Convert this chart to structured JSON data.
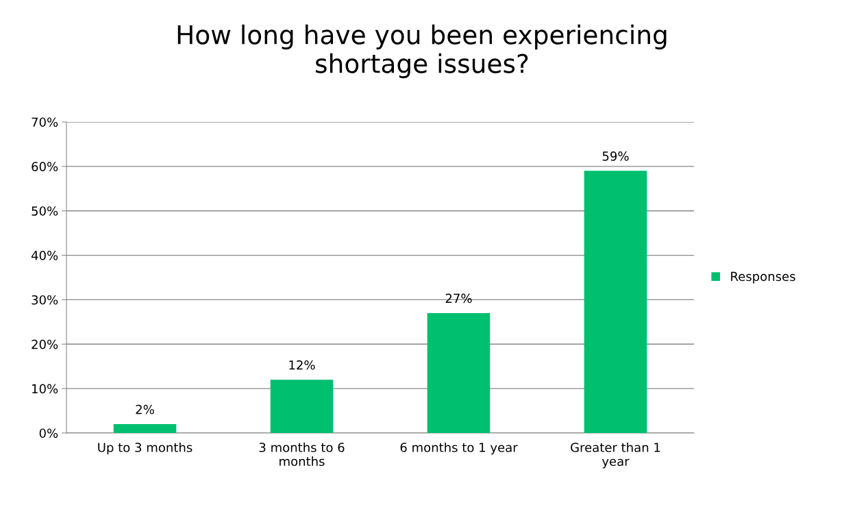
{
  "chart_data": {
    "type": "bar",
    "title": "How long have you been experiencing\nshortage issues?",
    "categories": [
      "Up to 3 months",
      "3 months to 6\nmonths",
      "6 months to 1 year",
      "Greater than 1\nyear"
    ],
    "series": [
      {
        "name": "Responses",
        "color": "#00bf6f",
        "values": [
          2,
          12,
          27,
          59
        ],
        "value_labels": [
          "2%",
          "12%",
          "27%",
          "59%"
        ]
      }
    ],
    "ylim": [
      0,
      70
    ],
    "yticks": [
      {
        "value": 0,
        "label": "0%"
      },
      {
        "value": 10,
        "label": "10%"
      },
      {
        "value": 20,
        "label": "20%"
      },
      {
        "value": 30,
        "label": "30%"
      },
      {
        "value": 40,
        "label": "40%"
      },
      {
        "value": 50,
        "label": "50%"
      },
      {
        "value": 60,
        "label": "60%"
      },
      {
        "value": 70,
        "label": "70%"
      }
    ],
    "grid": "y",
    "legend": "right"
  }
}
